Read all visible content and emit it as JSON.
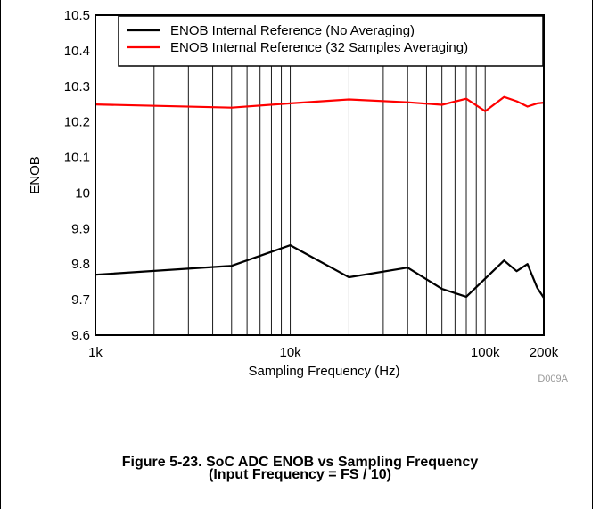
{
  "figure": {
    "id_label": "D009A",
    "caption_line1": "Figure 5-23. SoC ADC ENOB vs Sampling Frequency",
    "caption_line2": "(Input Frequency = FS / 10)"
  },
  "chart_data": {
    "type": "line",
    "title": "",
    "xlabel": "Sampling Frequency (Hz)",
    "ylabel": "ENOB",
    "xscale": "log",
    "xlim": [
      1000,
      200000
    ],
    "ylim": [
      9.6,
      10.5
    ],
    "grid": "vertical log gridlines",
    "legend_position": "top-right",
    "x_tick_labels": [
      {
        "value": 1000,
        "label": "1k"
      },
      {
        "value": 10000,
        "label": "10k"
      },
      {
        "value": 100000,
        "label": "100k"
      },
      {
        "value": 200000,
        "label": "200k"
      }
    ],
    "y_tick_labels": [
      {
        "value": 9.6,
        "label": "9.6"
      },
      {
        "value": 9.7,
        "label": "9.7"
      },
      {
        "value": 9.8,
        "label": "9.8"
      },
      {
        "value": 9.9,
        "label": "9.9"
      },
      {
        "value": 10.0,
        "label": "10"
      },
      {
        "value": 10.1,
        "label": "10.1"
      },
      {
        "value": 10.2,
        "label": "10.2"
      },
      {
        "value": 10.3,
        "label": "10.3"
      },
      {
        "value": 10.4,
        "label": "10.4"
      },
      {
        "value": 10.5,
        "label": "10.5"
      }
    ],
    "series": [
      {
        "name": "ENOB Internal Reference (No Averaging)",
        "color": "#000000",
        "x": [
          1000,
          5000,
          10000,
          20000,
          40000,
          60000,
          80000,
          125000,
          145000,
          165000,
          185000,
          200000
        ],
        "y": [
          9.77,
          9.795,
          9.853,
          9.763,
          9.79,
          9.73,
          9.708,
          9.81,
          9.78,
          9.8,
          9.733,
          9.705
        ]
      },
      {
        "name": "ENOB Internal Reference (32 Samples Averaging)",
        "color": "#ff0000",
        "x": [
          1000,
          5000,
          10000,
          20000,
          40000,
          60000,
          80000,
          100000,
          125000,
          145000,
          165000,
          185000,
          200000
        ],
        "y": [
          10.249,
          10.24,
          10.252,
          10.263,
          10.255,
          10.248,
          10.265,
          10.23,
          10.27,
          10.258,
          10.243,
          10.252,
          10.254
        ]
      }
    ]
  }
}
